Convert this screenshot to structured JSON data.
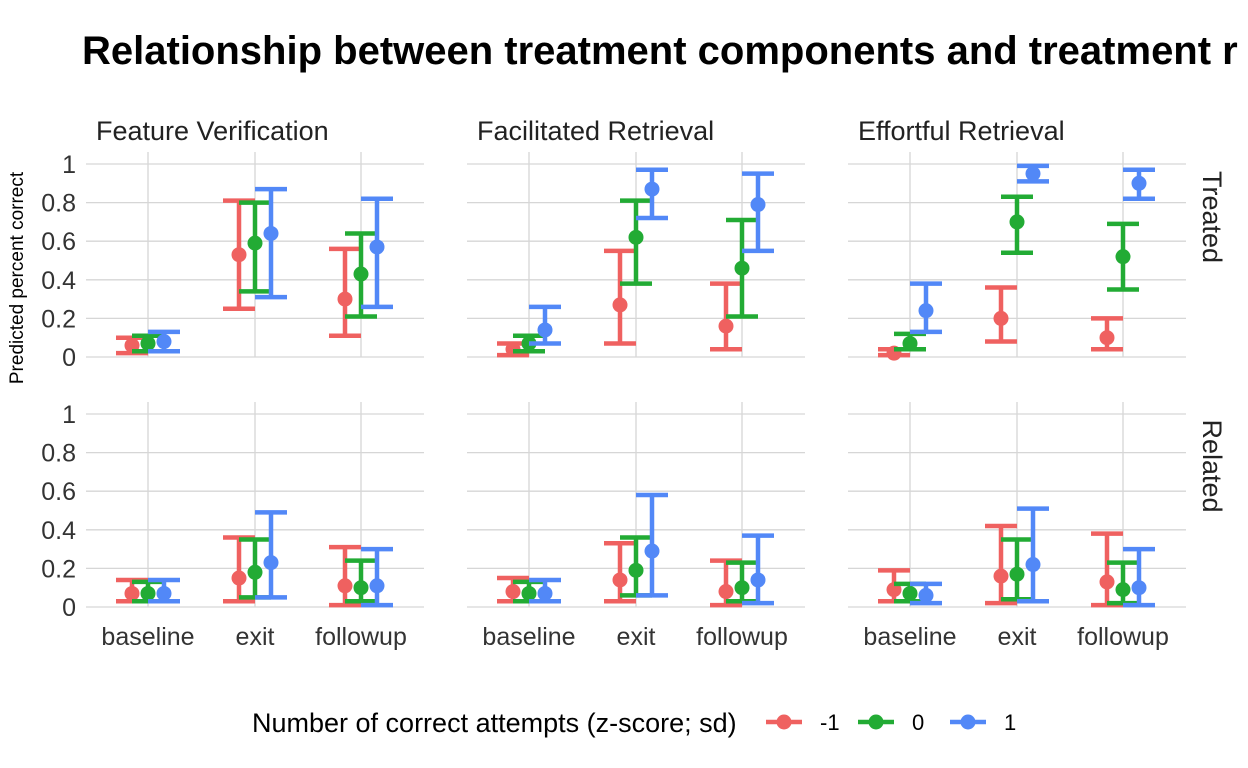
{
  "chart_data": {
    "type": "scatter",
    "title": "Relationship between treatment components and treatment r",
    "ylabel": "Predicted percent correct",
    "ylim": [
      0,
      1
    ],
    "y_ticks": [
      "0",
      "0.2",
      "0.4",
      "0.6",
      "0.8",
      "1"
    ],
    "categories": [
      "baseline",
      "exit",
      "followup"
    ],
    "col_facets": [
      "Feature Verification",
      "Facilitated Retrieval",
      "Effortful Retrieval"
    ],
    "row_facets": [
      "Treated",
      "Related"
    ],
    "grid": true,
    "legend": {
      "title": "Number of correct attempts (z-score; sd)",
      "position": "bottom",
      "entries": [
        {
          "label": "-1",
          "color": "#ef6160"
        },
        {
          "label": "0",
          "color": "#22ab34"
        },
        {
          "label": "1",
          "color": "#5288f7"
        }
      ]
    },
    "panels": [
      {
        "row": "Treated",
        "col": "Feature Verification",
        "series": [
          {
            "label": "-1",
            "mean": [
              0.06,
              0.53,
              0.3
            ],
            "lower": [
              0.02,
              0.25,
              0.11
            ],
            "upper": [
              0.1,
              0.81,
              0.56
            ]
          },
          {
            "label": "0",
            "mean": [
              0.07,
              0.59,
              0.43
            ],
            "lower": [
              0.03,
              0.34,
              0.21
            ],
            "upper": [
              0.11,
              0.8,
              0.64
            ]
          },
          {
            "label": "1",
            "mean": [
              0.08,
              0.64,
              0.57
            ],
            "lower": [
              0.03,
              0.31,
              0.26
            ],
            "upper": [
              0.13,
              0.87,
              0.82
            ]
          }
        ]
      },
      {
        "row": "Treated",
        "col": "Facilitated Retrieval",
        "series": [
          {
            "label": "-1",
            "mean": [
              0.04,
              0.27,
              0.16
            ],
            "lower": [
              0.01,
              0.07,
              0.04
            ],
            "upper": [
              0.07,
              0.55,
              0.38
            ]
          },
          {
            "label": "0",
            "mean": [
              0.07,
              0.62,
              0.46
            ],
            "lower": [
              0.03,
              0.38,
              0.21
            ],
            "upper": [
              0.11,
              0.81,
              0.71
            ]
          },
          {
            "label": "1",
            "mean": [
              0.14,
              0.87,
              0.79
            ],
            "lower": [
              0.07,
              0.72,
              0.55
            ],
            "upper": [
              0.26,
              0.97,
              0.95
            ]
          }
        ]
      },
      {
        "row": "Treated",
        "col": "Effortful Retrieval",
        "series": [
          {
            "label": "-1",
            "mean": [
              0.02,
              0.2,
              0.1
            ],
            "lower": [
              0.01,
              0.08,
              0.04
            ],
            "upper": [
              0.04,
              0.36,
              0.2
            ]
          },
          {
            "label": "0",
            "mean": [
              0.07,
              0.7,
              0.52
            ],
            "lower": [
              0.04,
              0.54,
              0.35
            ],
            "upper": [
              0.12,
              0.83,
              0.69
            ]
          },
          {
            "label": "1",
            "mean": [
              0.24,
              0.95,
              0.9
            ],
            "lower": [
              0.13,
              0.91,
              0.82
            ],
            "upper": [
              0.38,
              0.99,
              0.97
            ]
          }
        ]
      },
      {
        "row": "Related",
        "col": "Feature Verification",
        "series": [
          {
            "label": "-1",
            "mean": [
              0.07,
              0.15,
              0.11
            ],
            "lower": [
              0.03,
              0.03,
              0.01
            ],
            "upper": [
              0.14,
              0.36,
              0.31
            ]
          },
          {
            "label": "0",
            "mean": [
              0.07,
              0.18,
              0.1
            ],
            "lower": [
              0.03,
              0.05,
              0.03
            ],
            "upper": [
              0.13,
              0.35,
              0.24
            ]
          },
          {
            "label": "1",
            "mean": [
              0.07,
              0.23,
              0.11
            ],
            "lower": [
              0.03,
              0.05,
              0.01
            ],
            "upper": [
              0.14,
              0.49,
              0.3
            ]
          }
        ]
      },
      {
        "row": "Related",
        "col": "Facilitated Retrieval",
        "series": [
          {
            "label": "-1",
            "mean": [
              0.08,
              0.14,
              0.08
            ],
            "lower": [
              0.03,
              0.03,
              0.01
            ],
            "upper": [
              0.15,
              0.33,
              0.24
            ]
          },
          {
            "label": "0",
            "mean": [
              0.07,
              0.19,
              0.1
            ],
            "lower": [
              0.03,
              0.06,
              0.03
            ],
            "upper": [
              0.13,
              0.36,
              0.23
            ]
          },
          {
            "label": "1",
            "mean": [
              0.07,
              0.29,
              0.14
            ],
            "lower": [
              0.03,
              0.06,
              0.02
            ],
            "upper": [
              0.14,
              0.58,
              0.37
            ]
          }
        ]
      },
      {
        "row": "Related",
        "col": "Effortful Retrieval",
        "series": [
          {
            "label": "-1",
            "mean": [
              0.09,
              0.16,
              0.13
            ],
            "lower": [
              0.03,
              0.02,
              0.01
            ],
            "upper": [
              0.19,
              0.42,
              0.38
            ]
          },
          {
            "label": "0",
            "mean": [
              0.07,
              0.17,
              0.09
            ],
            "lower": [
              0.03,
              0.04,
              0.02
            ],
            "upper": [
              0.12,
              0.35,
              0.23
            ]
          },
          {
            "label": "1",
            "mean": [
              0.06,
              0.22,
              0.1
            ],
            "lower": [
              0.02,
              0.03,
              0.01
            ],
            "upper": [
              0.12,
              0.51,
              0.3
            ]
          }
        ]
      }
    ]
  }
}
